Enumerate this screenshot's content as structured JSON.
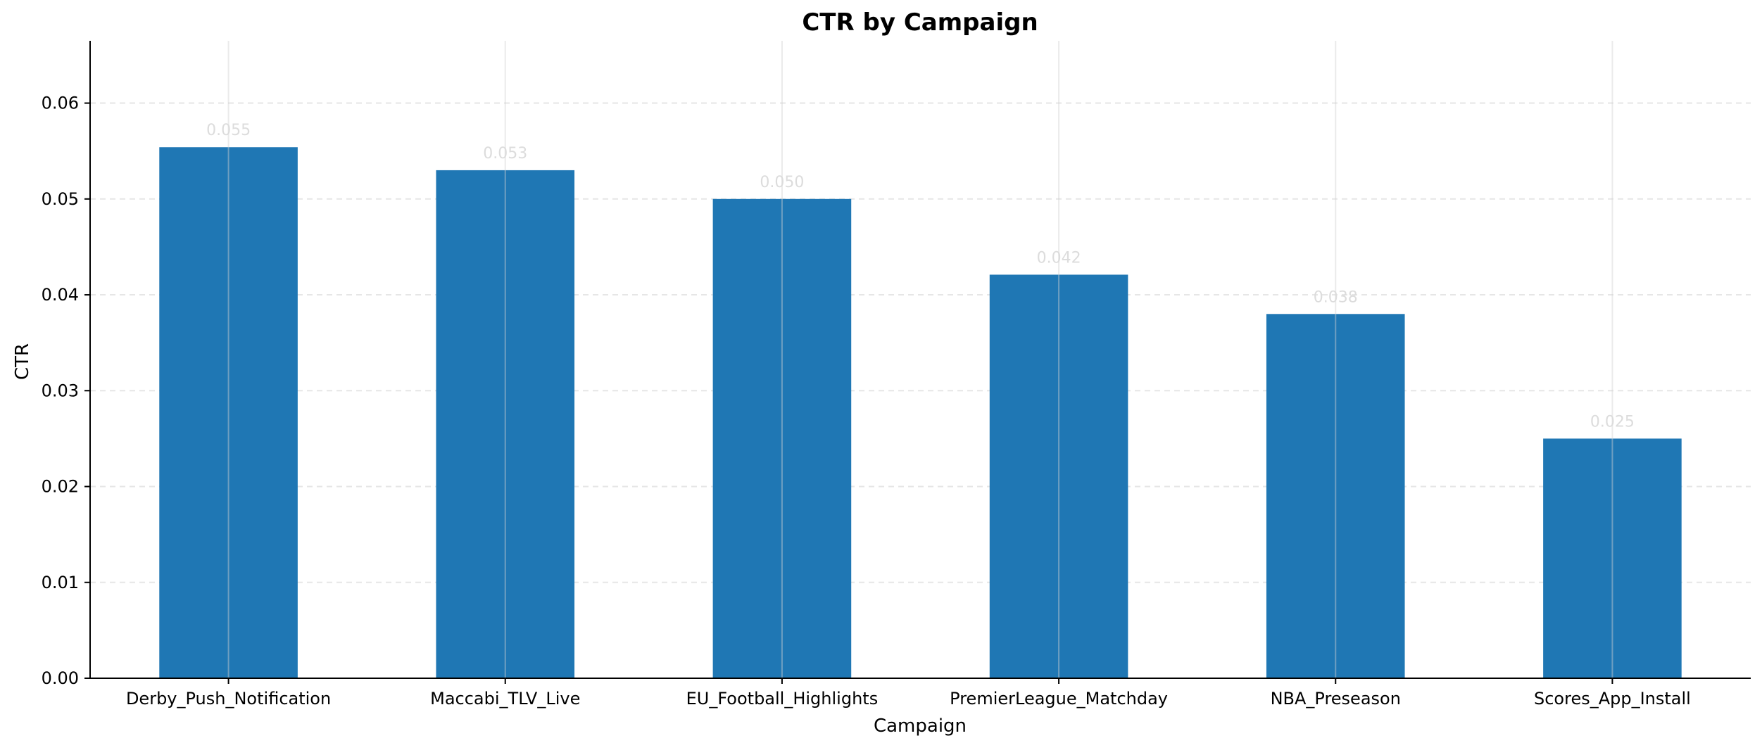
{
  "chart_data": {
    "type": "bar",
    "title": "CTR by Campaign",
    "xlabel": "Campaign",
    "ylabel": "CTR",
    "categories": [
      "Derby_Push_Notification",
      "Maccabi_TLV_Live",
      "EU_Football_Highlights",
      "PremierLeague_Matchday",
      "NBA_Preseason",
      "Scores_App_Install"
    ],
    "values": [
      0.0554,
      0.053,
      0.05,
      0.0421,
      0.038,
      0.025
    ],
    "value_labels": [
      "0.055",
      "0.053",
      "0.050",
      "0.042",
      "0.038",
      "0.025"
    ],
    "ylim": [
      0,
      0.0665
    ],
    "yticks": [
      0.0,
      0.01,
      0.02,
      0.03,
      0.04,
      0.05,
      0.06
    ],
    "ytick_labels": [
      "0.00",
      "0.01",
      "0.02",
      "0.03",
      "0.04",
      "0.05",
      "0.06"
    ],
    "grid": true,
    "legend": "none",
    "colors": {
      "bar": "#1f77b4",
      "value_label": "#dcdcdc",
      "grid": "#e6e6e6",
      "axis": "#000000",
      "text": "#000000"
    }
  }
}
